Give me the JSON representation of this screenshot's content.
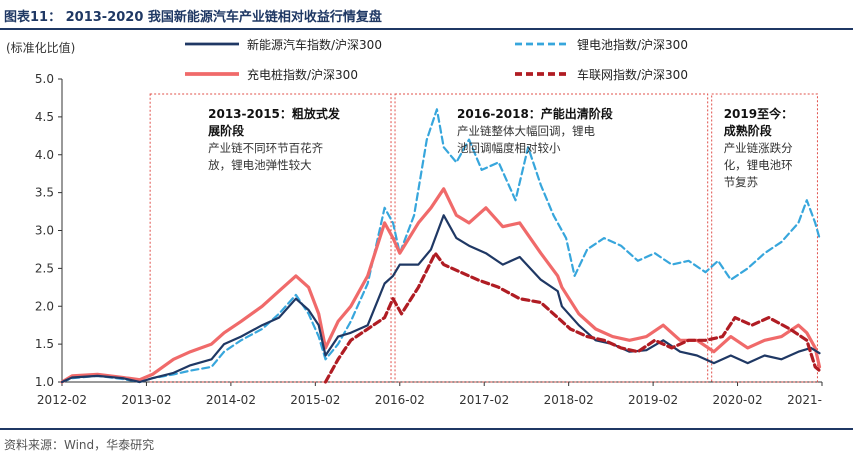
{
  "header": {
    "title": "图表11： 2013-2020 我国新能源汽车产业链相对收益行情复盘"
  },
  "footer": {
    "source": "资料来源：Wind，华泰研究"
  },
  "colors": {
    "nev": "#1f3864",
    "battery": "#37a6dc",
    "charging": "#f06a6a",
    "iov": "#b01c23",
    "box": "#e0504a",
    "axis": "#333333"
  },
  "chart_data": {
    "type": "line",
    "ylabel": "(标准化比值)",
    "ylim": [
      1.0,
      5.0
    ],
    "y_ticks": [
      "1.0",
      "1.5",
      "2.0",
      "2.5",
      "3.0",
      "3.5",
      "4.0",
      "4.5",
      "5.0"
    ],
    "x_ticks": [
      "2012-02",
      "2013-02",
      "2014-02",
      "2015-02",
      "2016-02",
      "2017-02",
      "2018-02",
      "2019-02",
      "2020-02",
      "2021-"
    ],
    "legend": {
      "placement": "top",
      "entries": [
        "新能源汽车指数/沪深300",
        "锂电池指数/沪深300",
        "充电桩指数/沪深300",
        "车联网指数/沪深300"
      ]
    },
    "series": [
      {
        "name": "新能源汽车指数/沪深300",
        "style": "solid",
        "points": [
          [
            2012.08,
            1.0
          ],
          [
            2012.2,
            1.06
          ],
          [
            2012.5,
            1.08
          ],
          [
            2012.8,
            1.05
          ],
          [
            2013.0,
            1.0
          ],
          [
            2013.15,
            1.05
          ],
          [
            2013.4,
            1.12
          ],
          [
            2013.6,
            1.22
          ],
          [
            2013.85,
            1.3
          ],
          [
            2014.0,
            1.5
          ],
          [
            2014.2,
            1.6
          ],
          [
            2014.45,
            1.75
          ],
          [
            2014.65,
            1.85
          ],
          [
            2014.85,
            2.1
          ],
          [
            2015.0,
            1.95
          ],
          [
            2015.12,
            1.75
          ],
          [
            2015.2,
            1.35
          ],
          [
            2015.35,
            1.6
          ],
          [
            2015.5,
            1.65
          ],
          [
            2015.7,
            1.75
          ],
          [
            2015.9,
            2.3
          ],
          [
            2016.0,
            2.4
          ],
          [
            2016.08,
            2.55
          ],
          [
            2016.3,
            2.55
          ],
          [
            2016.45,
            2.75
          ],
          [
            2016.6,
            3.2
          ],
          [
            2016.75,
            2.9
          ],
          [
            2016.9,
            2.8
          ],
          [
            2017.1,
            2.7
          ],
          [
            2017.3,
            2.55
          ],
          [
            2017.5,
            2.65
          ],
          [
            2017.75,
            2.35
          ],
          [
            2017.95,
            2.2
          ],
          [
            2018.0,
            2.0
          ],
          [
            2018.2,
            1.75
          ],
          [
            2018.4,
            1.55
          ],
          [
            2018.6,
            1.5
          ],
          [
            2018.8,
            1.4
          ],
          [
            2019.0,
            1.42
          ],
          [
            2019.2,
            1.55
          ],
          [
            2019.4,
            1.4
          ],
          [
            2019.6,
            1.35
          ],
          [
            2019.8,
            1.25
          ],
          [
            2020.0,
            1.35
          ],
          [
            2020.2,
            1.25
          ],
          [
            2020.4,
            1.35
          ],
          [
            2020.6,
            1.3
          ],
          [
            2020.8,
            1.4
          ],
          [
            2020.95,
            1.45
          ],
          [
            2021.05,
            1.38
          ]
        ]
      },
      {
        "name": "锂电池指数/沪深300",
        "style": "dashed",
        "points": [
          [
            2012.08,
            1.0
          ],
          [
            2012.2,
            1.05
          ],
          [
            2012.5,
            1.08
          ],
          [
            2012.8,
            1.04
          ],
          [
            2013.0,
            1.0
          ],
          [
            2013.15,
            1.05
          ],
          [
            2013.4,
            1.1
          ],
          [
            2013.6,
            1.15
          ],
          [
            2013.85,
            1.2
          ],
          [
            2014.0,
            1.4
          ],
          [
            2014.2,
            1.55
          ],
          [
            2014.45,
            1.7
          ],
          [
            2014.65,
            1.9
          ],
          [
            2014.85,
            2.15
          ],
          [
            2015.0,
            1.9
          ],
          [
            2015.12,
            1.6
          ],
          [
            2015.2,
            1.3
          ],
          [
            2015.35,
            1.5
          ],
          [
            2015.5,
            1.8
          ],
          [
            2015.7,
            2.3
          ],
          [
            2015.9,
            3.3
          ],
          [
            2016.0,
            3.1
          ],
          [
            2016.08,
            2.7
          ],
          [
            2016.25,
            3.2
          ],
          [
            2016.4,
            4.2
          ],
          [
            2016.52,
            4.6
          ],
          [
            2016.6,
            4.1
          ],
          [
            2016.75,
            3.9
          ],
          [
            2016.9,
            4.2
          ],
          [
            2017.05,
            3.8
          ],
          [
            2017.25,
            3.9
          ],
          [
            2017.45,
            3.4
          ],
          [
            2017.6,
            4.1
          ],
          [
            2017.75,
            3.6
          ],
          [
            2017.9,
            3.2
          ],
          [
            2018.05,
            2.9
          ],
          [
            2018.15,
            2.4
          ],
          [
            2018.3,
            2.75
          ],
          [
            2018.5,
            2.9
          ],
          [
            2018.7,
            2.8
          ],
          [
            2018.9,
            2.6
          ],
          [
            2019.1,
            2.7
          ],
          [
            2019.3,
            2.55
          ],
          [
            2019.5,
            2.6
          ],
          [
            2019.7,
            2.45
          ],
          [
            2019.85,
            2.6
          ],
          [
            2020.0,
            2.35
          ],
          [
            2020.2,
            2.5
          ],
          [
            2020.4,
            2.7
          ],
          [
            2020.6,
            2.85
          ],
          [
            2020.8,
            3.1
          ],
          [
            2020.9,
            3.4
          ],
          [
            2021.0,
            3.1
          ],
          [
            2021.05,
            2.9
          ]
        ]
      },
      {
        "name": "充电桩指数/沪深300",
        "style": "solid-thick",
        "points": [
          [
            2012.08,
            1.0
          ],
          [
            2012.2,
            1.08
          ],
          [
            2012.5,
            1.1
          ],
          [
            2012.8,
            1.06
          ],
          [
            2013.0,
            1.03
          ],
          [
            2013.15,
            1.1
          ],
          [
            2013.4,
            1.3
          ],
          [
            2013.6,
            1.4
          ],
          [
            2013.85,
            1.5
          ],
          [
            2014.0,
            1.65
          ],
          [
            2014.2,
            1.8
          ],
          [
            2014.45,
            2.0
          ],
          [
            2014.65,
            2.2
          ],
          [
            2014.85,
            2.4
          ],
          [
            2015.0,
            2.25
          ],
          [
            2015.12,
            1.9
          ],
          [
            2015.2,
            1.45
          ],
          [
            2015.35,
            1.8
          ],
          [
            2015.5,
            2.0
          ],
          [
            2015.7,
            2.4
          ],
          [
            2015.9,
            3.1
          ],
          [
            2016.0,
            2.9
          ],
          [
            2016.08,
            2.7
          ],
          [
            2016.3,
            3.1
          ],
          [
            2016.45,
            3.3
          ],
          [
            2016.6,
            3.55
          ],
          [
            2016.75,
            3.2
          ],
          [
            2016.9,
            3.1
          ],
          [
            2017.1,
            3.3
          ],
          [
            2017.3,
            3.05
          ],
          [
            2017.5,
            3.1
          ],
          [
            2017.75,
            2.7
          ],
          [
            2017.95,
            2.4
          ],
          [
            2018.0,
            2.25
          ],
          [
            2018.2,
            1.9
          ],
          [
            2018.4,
            1.7
          ],
          [
            2018.6,
            1.6
          ],
          [
            2018.8,
            1.55
          ],
          [
            2019.0,
            1.6
          ],
          [
            2019.2,
            1.75
          ],
          [
            2019.4,
            1.55
          ],
          [
            2019.6,
            1.55
          ],
          [
            2019.8,
            1.4
          ],
          [
            2020.0,
            1.6
          ],
          [
            2020.2,
            1.45
          ],
          [
            2020.4,
            1.55
          ],
          [
            2020.6,
            1.6
          ],
          [
            2020.8,
            1.75
          ],
          [
            2020.9,
            1.65
          ],
          [
            2021.0,
            1.45
          ],
          [
            2021.05,
            1.2
          ]
        ]
      },
      {
        "name": "车联网指数/沪深300",
        "style": "dashed-thick",
        "points": [
          [
            2015.2,
            1.0
          ],
          [
            2015.35,
            1.3
          ],
          [
            2015.5,
            1.55
          ],
          [
            2015.7,
            1.7
          ],
          [
            2015.9,
            1.85
          ],
          [
            2016.0,
            2.1
          ],
          [
            2016.1,
            1.9
          ],
          [
            2016.3,
            2.25
          ],
          [
            2016.5,
            2.7
          ],
          [
            2016.6,
            2.55
          ],
          [
            2016.8,
            2.45
          ],
          [
            2017.0,
            2.35
          ],
          [
            2017.25,
            2.25
          ],
          [
            2017.5,
            2.1
          ],
          [
            2017.75,
            2.05
          ],
          [
            2017.95,
            1.85
          ],
          [
            2018.1,
            1.7
          ],
          [
            2018.3,
            1.6
          ],
          [
            2018.5,
            1.55
          ],
          [
            2018.7,
            1.45
          ],
          [
            2018.9,
            1.4
          ],
          [
            2019.1,
            1.55
          ],
          [
            2019.3,
            1.45
          ],
          [
            2019.5,
            1.55
          ],
          [
            2019.7,
            1.55
          ],
          [
            2019.9,
            1.6
          ],
          [
            2020.05,
            1.85
          ],
          [
            2020.25,
            1.75
          ],
          [
            2020.45,
            1.85
          ],
          [
            2020.7,
            1.7
          ],
          [
            2020.9,
            1.55
          ],
          [
            2021.0,
            1.2
          ],
          [
            2021.05,
            1.15
          ]
        ]
      }
    ],
    "phases": [
      {
        "title": "2013-2015：粗放式发展阶段",
        "title_lines": [
          "2013-2015：粗放式发",
          "展阶段"
        ],
        "desc_lines": [
          "产业链不同环节百花齐",
          "放，锂电池弹性较大"
        ],
        "x_range": [
          2013.1,
          2016.0
        ]
      },
      {
        "title": "2016-2018：产能出清阶段",
        "title_lines": [
          "2016-2018：产能出清阶段"
        ],
        "desc_lines": [
          "产业链整体大幅回调，锂电",
          "池回调幅度相对较小"
        ],
        "x_range": [
          2016.0,
          2019.75
        ]
      },
      {
        "title": "2019至今：成熟阶段",
        "title_lines": [
          "2019至今：",
          "成熟阶段"
        ],
        "desc_lines": [
          "产业链涨跌分",
          "化，锂电池环",
          "节复苏"
        ],
        "x_range": [
          2019.75,
          2021.05
        ]
      }
    ]
  }
}
